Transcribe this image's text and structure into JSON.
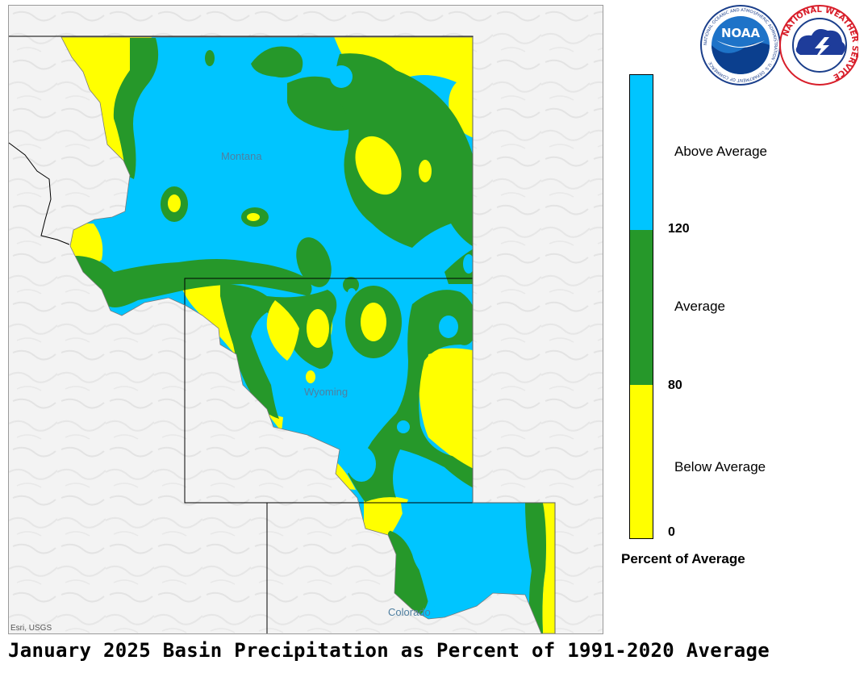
{
  "title": "January 2025 Basin Precipitation as Percent of 1991-2020 Average",
  "map": {
    "states": [
      {
        "name": "Montana"
      },
      {
        "name": "Wyoming"
      },
      {
        "name": "Colorado"
      }
    ],
    "attribution": "Esri, USGS",
    "colors": {
      "above": "#00c5ff",
      "average": "#26982a",
      "below": "#ffff00",
      "basemap": "#f2f2f2",
      "boundary": "#000000"
    }
  },
  "logos": {
    "noaa": {
      "text": "NOAA",
      "ring_text": "NATIONAL OCEANIC AND ATMOSPHERIC ADMINISTRATION · U.S. DEPARTMENT OF COMMERCE"
    },
    "nws": {
      "ring_text": "NATIONAL WEATHER SERVICE"
    }
  },
  "legend": {
    "title": "Percent of Average",
    "categories": [
      {
        "label": "Above Average",
        "color": "#00c5ff"
      },
      {
        "label": "Average",
        "color": "#26982a"
      },
      {
        "label": "Below Average",
        "color": "#ffff00"
      }
    ],
    "breaks": [
      "120",
      "80",
      "0"
    ]
  }
}
